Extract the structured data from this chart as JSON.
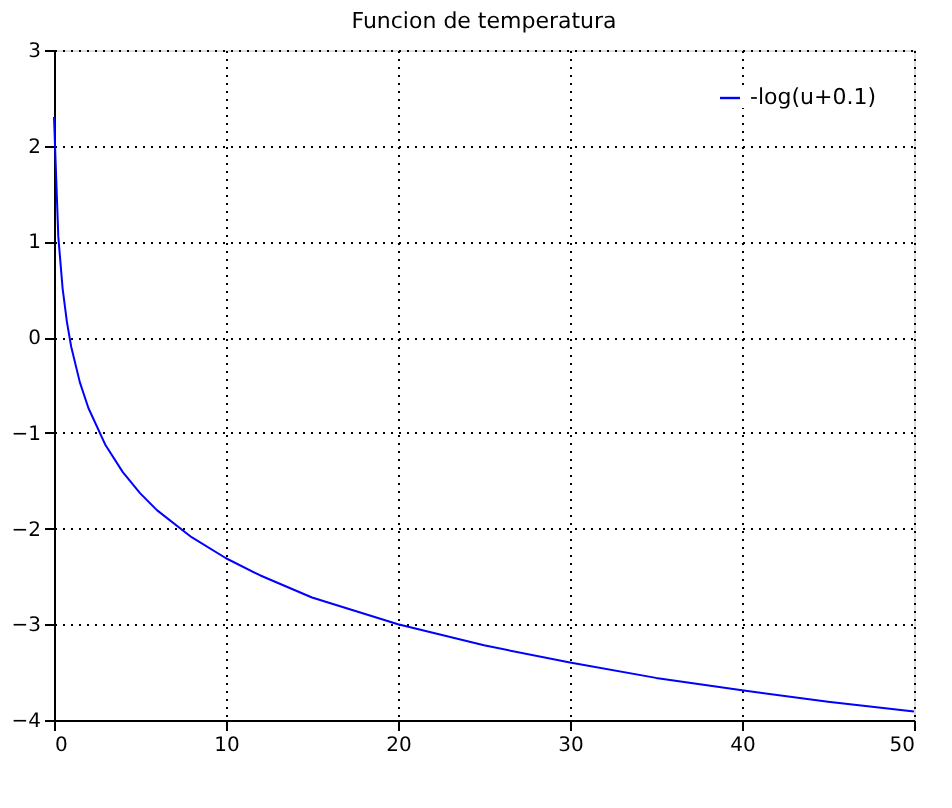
{
  "chart_data": {
    "type": "line",
    "title": "Funcion de temperatura",
    "x": [
      0,
      0.25,
      0.5,
      0.75,
      1,
      1.5,
      2,
      3,
      4,
      5,
      6,
      8,
      10,
      12,
      15,
      20,
      25,
      30,
      35,
      40,
      45,
      50
    ],
    "series": [
      {
        "name": "-log(u+0.1)",
        "color": "#0000ff",
        "values": [
          2.3,
          1.05,
          0.51,
          0.16,
          -0.1,
          -0.47,
          -0.74,
          -1.13,
          -1.41,
          -1.63,
          -1.81,
          -2.09,
          -2.31,
          -2.49,
          -2.72,
          -3.0,
          -3.22,
          -3.4,
          -3.56,
          -3.69,
          -3.81,
          -3.91
        ]
      }
    ],
    "xlim": [
      0,
      50
    ],
    "ylim": [
      -4,
      3
    ],
    "xticks": [
      0,
      10,
      20,
      30,
      40,
      50
    ],
    "yticks": [
      -4,
      -3,
      -2,
      -1,
      0,
      1,
      2,
      3
    ],
    "grid": true,
    "legend": "top right",
    "marker": "none",
    "line_style": "solid"
  }
}
